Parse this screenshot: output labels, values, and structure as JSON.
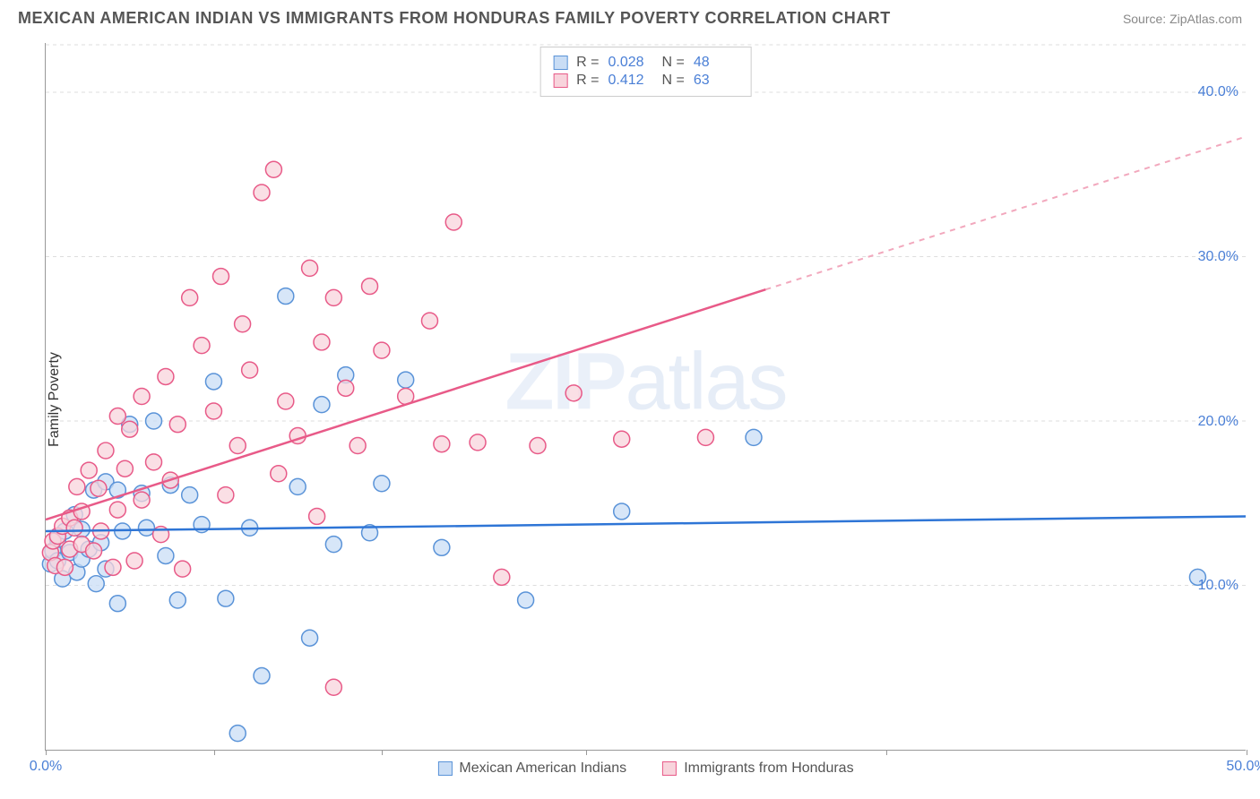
{
  "title": "MEXICAN AMERICAN INDIAN VS IMMIGRANTS FROM HONDURAS FAMILY POVERTY CORRELATION CHART",
  "source": "Source: ZipAtlas.com",
  "ylabel": "Family Poverty",
  "watermark_bold": "ZIP",
  "watermark_thin": "atlas",
  "chart": {
    "type": "scatter",
    "xlim": [
      0,
      50
    ],
    "ylim": [
      0,
      43
    ],
    "xtick_positions": [
      0,
      7,
      14,
      22.5,
      35,
      50
    ],
    "xtick_labels": [
      "0.0%",
      "",
      "",
      "",
      "",
      "50.0%"
    ],
    "ytick_positions": [
      10,
      20,
      30,
      40
    ],
    "ytick_labels": [
      "10.0%",
      "20.0%",
      "30.0%",
      "40.0%"
    ],
    "grid_color": "#dddddd",
    "background_color": "#ffffff",
    "series": [
      {
        "name": "Mexican American Indians",
        "color_fill": "#c9ddf5",
        "color_stroke": "#5a93d8",
        "marker_radius": 9,
        "R": "0.028",
        "N": "48",
        "trend": {
          "x1": 0,
          "y1": 13.3,
          "x2": 50,
          "y2": 14.2,
          "color": "#2e75d6",
          "width": 2.5,
          "dash": "none"
        },
        "trend_dash": null,
        "points": [
          [
            0.2,
            11.3
          ],
          [
            0.3,
            12.1
          ],
          [
            0.5,
            11.5
          ],
          [
            0.5,
            12.8
          ],
          [
            0.7,
            10.4
          ],
          [
            0.8,
            13.3
          ],
          [
            1.0,
            12.0
          ],
          [
            1.2,
            14.3
          ],
          [
            1.3,
            10.8
          ],
          [
            1.5,
            11.6
          ],
          [
            1.5,
            13.4
          ],
          [
            1.8,
            12.2
          ],
          [
            2.0,
            15.8
          ],
          [
            2.1,
            10.1
          ],
          [
            2.3,
            12.6
          ],
          [
            2.5,
            16.3
          ],
          [
            2.5,
            11.0
          ],
          [
            3.0,
            15.8
          ],
          [
            3.0,
            8.9
          ],
          [
            3.2,
            13.3
          ],
          [
            3.5,
            19.8
          ],
          [
            4.0,
            15.6
          ],
          [
            4.2,
            13.5
          ],
          [
            4.5,
            20.0
          ],
          [
            5.0,
            11.8
          ],
          [
            5.2,
            16.1
          ],
          [
            5.5,
            9.1
          ],
          [
            6.0,
            15.5
          ],
          [
            6.5,
            13.7
          ],
          [
            7.0,
            22.4
          ],
          [
            7.5,
            9.2
          ],
          [
            8.0,
            1.0
          ],
          [
            8.5,
            13.5
          ],
          [
            9.0,
            4.5
          ],
          [
            10.0,
            27.6
          ],
          [
            10.5,
            16.0
          ],
          [
            11.0,
            6.8
          ],
          [
            11.5,
            21.0
          ],
          [
            12.0,
            12.5
          ],
          [
            12.5,
            22.8
          ],
          [
            13.5,
            13.2
          ],
          [
            14.0,
            16.2
          ],
          [
            15.0,
            22.5
          ],
          [
            16.5,
            12.3
          ],
          [
            20.0,
            9.1
          ],
          [
            24.0,
            14.5
          ],
          [
            29.5,
            19.0
          ],
          [
            48.0,
            10.5
          ]
        ]
      },
      {
        "name": "Immigrants from Honduras",
        "color_fill": "#f8d4dc",
        "color_stroke": "#e85a88",
        "marker_radius": 9,
        "R": "0.412",
        "N": "63",
        "trend": {
          "x1": 0,
          "y1": 14.0,
          "x2": 30,
          "y2": 28.0,
          "color": "#e85a88",
          "width": 2.5,
          "dash": "none"
        },
        "trend_dash": {
          "x1": 30,
          "y1": 28.0,
          "x2": 50,
          "y2": 37.3,
          "color": "#f2a8bd",
          "width": 2,
          "dash": "6,6"
        },
        "points": [
          [
            0.2,
            12.0
          ],
          [
            0.3,
            12.7
          ],
          [
            0.4,
            11.2
          ],
          [
            0.5,
            13.0
          ],
          [
            0.7,
            13.6
          ],
          [
            0.8,
            11.1
          ],
          [
            1.0,
            14.1
          ],
          [
            1.0,
            12.2
          ],
          [
            1.2,
            13.5
          ],
          [
            1.3,
            16.0
          ],
          [
            1.5,
            12.5
          ],
          [
            1.5,
            14.5
          ],
          [
            1.8,
            17.0
          ],
          [
            2.0,
            12.1
          ],
          [
            2.2,
            15.9
          ],
          [
            2.3,
            13.3
          ],
          [
            2.5,
            18.2
          ],
          [
            2.8,
            11.1
          ],
          [
            3.0,
            20.3
          ],
          [
            3.0,
            14.6
          ],
          [
            3.3,
            17.1
          ],
          [
            3.5,
            19.5
          ],
          [
            3.7,
            11.5
          ],
          [
            4.0,
            15.2
          ],
          [
            4.0,
            21.5
          ],
          [
            4.5,
            17.5
          ],
          [
            4.8,
            13.1
          ],
          [
            5.0,
            22.7
          ],
          [
            5.2,
            16.4
          ],
          [
            5.5,
            19.8
          ],
          [
            5.7,
            11.0
          ],
          [
            6.0,
            27.5
          ],
          [
            6.5,
            24.6
          ],
          [
            7.0,
            20.6
          ],
          [
            7.3,
            28.8
          ],
          [
            7.5,
            15.5
          ],
          [
            8.0,
            18.5
          ],
          [
            8.2,
            25.9
          ],
          [
            8.5,
            23.1
          ],
          [
            9.0,
            33.9
          ],
          [
            9.5,
            35.3
          ],
          [
            9.7,
            16.8
          ],
          [
            10.0,
            21.2
          ],
          [
            10.5,
            19.1
          ],
          [
            11.0,
            29.3
          ],
          [
            11.3,
            14.2
          ],
          [
            11.5,
            24.8
          ],
          [
            12.0,
            27.5
          ],
          [
            12.5,
            22.0
          ],
          [
            13.0,
            18.5
          ],
          [
            13.5,
            28.2
          ],
          [
            14.0,
            24.3
          ],
          [
            15.0,
            21.5
          ],
          [
            16.0,
            26.1
          ],
          [
            16.5,
            18.6
          ],
          [
            17.0,
            32.1
          ],
          [
            18.0,
            18.7
          ],
          [
            19.0,
            10.5
          ],
          [
            20.5,
            18.5
          ],
          [
            22.0,
            21.7
          ],
          [
            24.0,
            18.9
          ],
          [
            27.5,
            19.0
          ],
          [
            12.0,
            3.8
          ]
        ]
      }
    ],
    "legend_top": {
      "rows": [
        {
          "swatch_fill": "#c9ddf5",
          "swatch_stroke": "#5a93d8",
          "r_label": "R =",
          "r_value": "0.028",
          "n_label": "N =",
          "n_value": "48"
        },
        {
          "swatch_fill": "#f8d4dc",
          "swatch_stroke": "#e85a88",
          "r_label": "R =",
          "r_value": " 0.412",
          "n_label": "N =",
          "n_value": "63"
        }
      ]
    },
    "legend_bottom": [
      {
        "swatch_fill": "#c9ddf5",
        "swatch_stroke": "#5a93d8",
        "label": "Mexican American Indians"
      },
      {
        "swatch_fill": "#f8d4dc",
        "swatch_stroke": "#e85a88",
        "label": "Immigrants from Honduras"
      }
    ]
  }
}
